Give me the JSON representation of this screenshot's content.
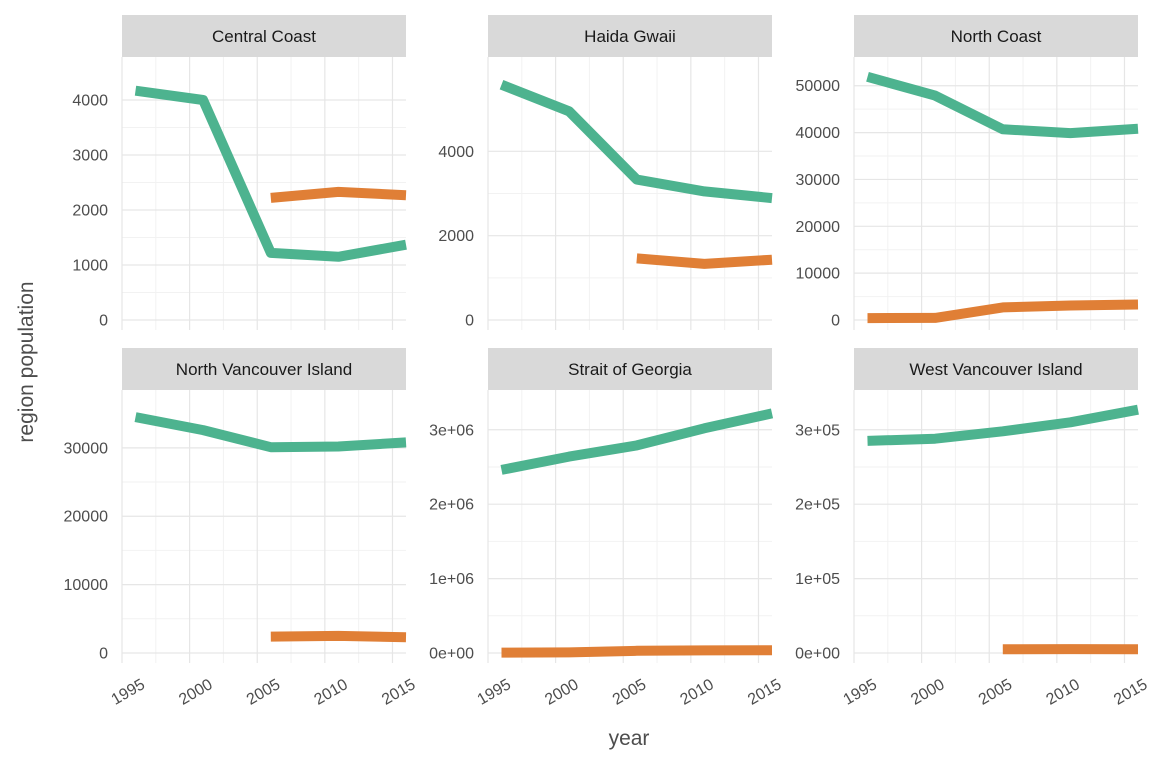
{
  "chart_data": {
    "type": "line",
    "layout": "facet_grid",
    "xlabel": "year",
    "ylabel": "region population",
    "x_ticks": [
      1995,
      2000,
      2005,
      2010,
      2015
    ],
    "xlim": [
      1995,
      2016
    ],
    "series_colors": [
      "#4DB38F",
      "#E07F36"
    ],
    "facets": [
      {
        "title": "Central Coast",
        "ylim": [
          0,
          4600
        ],
        "y_ticks": [
          0,
          1000,
          2000,
          3000,
          4000
        ],
        "y_tick_labels": [
          "0",
          "1000",
          "2000",
          "3000",
          "4000"
        ],
        "series": [
          {
            "x": [
              1996,
              2001,
              2006,
              2011,
              2016
            ],
            "values": [
              4170,
              4000,
              1220,
              1150,
              1370
            ]
          },
          {
            "x": [
              2006,
              2011,
              2016
            ],
            "values": [
              2220,
              2330,
              2270
            ]
          }
        ]
      },
      {
        "title": "Haida Gwaii",
        "ylim": [
          0,
          6000
        ],
        "y_ticks": [
          0,
          2000,
          4000
        ],
        "y_tick_labels": [
          "0",
          "2000",
          "4000"
        ],
        "series": [
          {
            "x": [
              1996,
              2001,
              2006,
              2011,
              2016
            ],
            "values": [
              5580,
              4950,
              3330,
              3050,
              2890
            ]
          },
          {
            "x": [
              2006,
              2011,
              2016
            ],
            "values": [
              1460,
              1330,
              1430
            ]
          }
        ]
      },
      {
        "title": "North Coast",
        "ylim": [
          0,
          54000
        ],
        "y_ticks": [
          0,
          10000,
          20000,
          30000,
          40000,
          50000
        ],
        "y_tick_labels": [
          "0",
          "10000",
          "20000",
          "30000",
          "40000",
          "50000"
        ],
        "series": [
          {
            "x": [
              1996,
              2001,
              2006,
              2011,
              2016
            ],
            "values": [
              51900,
              47900,
              40700,
              39900,
              40800
            ]
          },
          {
            "x": [
              1996,
              2001,
              2006,
              2011,
              2016
            ],
            "values": [
              400,
              450,
              2700,
              3100,
              3300
            ]
          }
        ]
      },
      {
        "title": "North Vancouver Island",
        "ylim": [
          0,
          37000
        ],
        "y_ticks": [
          0,
          10000,
          20000,
          30000
        ],
        "y_tick_labels": [
          "0",
          "10000",
          "20000",
          "30000"
        ],
        "series": [
          {
            "x": [
              1996,
              2001,
              2006,
              2011,
              2016
            ],
            "values": [
              34500,
              32600,
              30100,
              30200,
              30800
            ]
          },
          {
            "x": [
              2006,
              2011,
              2016
            ],
            "values": [
              2400,
              2500,
              2300
            ]
          }
        ]
      },
      {
        "title": "Strait of Georgia",
        "ylim": [
          0,
          3400000
        ],
        "y_ticks": [
          0,
          1000000,
          2000000,
          3000000
        ],
        "y_tick_labels": [
          "0e+00",
          "1e+06",
          "2e+06",
          "3e+06"
        ],
        "series": [
          {
            "x": [
              1996,
              2001,
              2006,
              2011,
              2016
            ],
            "values": [
              2460000,
              2640000,
              2790000,
              3020000,
              3220000
            ]
          },
          {
            "x": [
              1996,
              2001,
              2006,
              2011,
              2016
            ],
            "values": [
              5000,
              8000,
              30000,
              35000,
              38000
            ]
          }
        ]
      },
      {
        "title": "West Vancouver Island",
        "ylim": [
          0,
          340000
        ],
        "y_ticks": [
          0,
          100000,
          200000,
          300000
        ],
        "y_tick_labels": [
          "0e+00",
          "1e+05",
          "2e+05",
          "3e+05"
        ],
        "series": [
          {
            "x": [
              1996,
              2001,
              2006,
              2011,
              2016
            ],
            "values": [
              285000,
              288000,
              298000,
              310000,
              327000
            ]
          },
          {
            "x": [
              2006,
              2011,
              2016
            ],
            "values": [
              5000,
              5200,
              5000
            ]
          }
        ]
      }
    ]
  }
}
